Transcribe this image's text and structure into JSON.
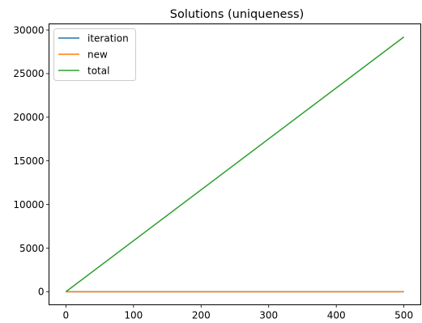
{
  "chart_data": {
    "type": "line",
    "title": "Solutions (uniqueness)",
    "xlabel": "",
    "ylabel": "",
    "xlim": [
      -25,
      525
    ],
    "ylim": [
      -1500,
      30700
    ],
    "xticks": [
      0,
      100,
      200,
      300,
      400,
      500
    ],
    "yticks": [
      0,
      5000,
      10000,
      15000,
      20000,
      25000,
      30000
    ],
    "grid": false,
    "legend_position": "top-left",
    "series": [
      {
        "name": "iteration",
        "color": "#1f77b4",
        "x": [
          0,
          500
        ],
        "y": [
          1,
          1
        ]
      },
      {
        "name": "new",
        "color": "#ff7f0e",
        "x": [
          0,
          500
        ],
        "y": [
          1,
          1
        ]
      },
      {
        "name": "total",
        "color": "#2ca02c",
        "x": [
          0,
          500
        ],
        "y": [
          0,
          29200
        ]
      }
    ]
  }
}
